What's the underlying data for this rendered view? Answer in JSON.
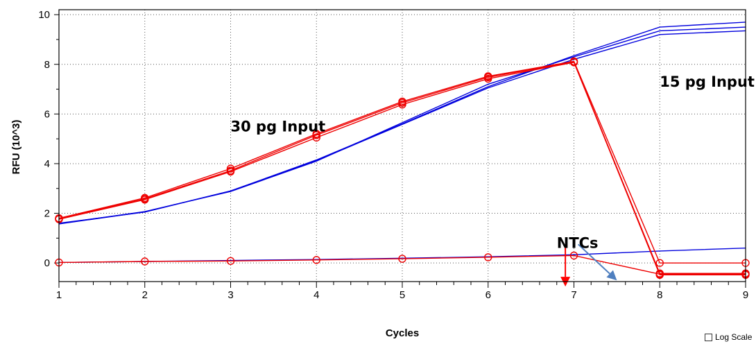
{
  "chart_data": {
    "type": "line",
    "xlabel": "Cycles",
    "ylabel": "RFU (10^3)",
    "xlim": [
      1,
      9
    ],
    "ylim": [
      -0.75,
      10.2
    ],
    "x_ticks": [
      1,
      2,
      3,
      4,
      5,
      6,
      7,
      8,
      9
    ],
    "y_ticks": [
      0,
      2,
      4,
      6,
      8,
      10
    ],
    "grid": true,
    "x": [
      1,
      2,
      3,
      4,
      5,
      6,
      7,
      8,
      9
    ],
    "series": [
      {
        "color": "#0000dd",
        "markers": false,
        "values": [
          1.6,
          2.05,
          2.9,
          4.15,
          5.6,
          7.1,
          8.35,
          9.5,
          9.7
        ]
      },
      {
        "color": "#0000dd",
        "markers": false,
        "values": [
          1.58,
          2.07,
          2.88,
          4.1,
          5.65,
          7.2,
          8.3,
          9.35,
          9.5
        ]
      },
      {
        "color": "#0000dd",
        "markers": false,
        "values": [
          1.57,
          2.06,
          2.9,
          4.12,
          5.58,
          7.05,
          8.2,
          9.2,
          9.35
        ]
      },
      {
        "color": "#0000dd",
        "markers": false,
        "values": [
          0.02,
          0.06,
          0.1,
          0.14,
          0.19,
          0.25,
          0.33,
          0.48,
          0.6
        ]
      },
      {
        "color": "#ee0000",
        "markers": true,
        "values": [
          1.8,
          2.62,
          3.8,
          5.2,
          6.5,
          7.52,
          8.12,
          0.0,
          0.0
        ]
      },
      {
        "color": "#ee0000",
        "markers": true,
        "values": [
          1.78,
          2.58,
          3.72,
          5.15,
          6.45,
          7.48,
          8.1,
          -0.42,
          -0.42
        ]
      },
      {
        "color": "#ee0000",
        "markers": true,
        "values": [
          1.76,
          2.55,
          3.68,
          5.05,
          6.38,
          7.42,
          8.08,
          -0.48,
          -0.48
        ]
      },
      {
        "color": "#ee0000",
        "markers": true,
        "values": [
          0.02,
          0.06,
          0.08,
          0.12,
          0.17,
          0.23,
          0.3,
          -0.45,
          -0.45
        ]
      }
    ],
    "annotations": [
      {
        "text": "30 pg Input",
        "x": 3.0,
        "y": 5.3
      },
      {
        "text": "15 pg Input",
        "x": 8.0,
        "y": 7.1
      },
      {
        "text": "NTCs",
        "x": 6.8,
        "y": 0.6
      }
    ],
    "arrows": [
      {
        "color": "#ff0000",
        "x1": 6.9,
        "y1": 0.7,
        "x2": 6.9,
        "y2": -0.95
      },
      {
        "color": "#4f7fbf",
        "x1": 7.05,
        "y1": 0.75,
        "x2": 7.5,
        "y2": -0.7
      }
    ]
  },
  "log_scale": {
    "label": "Log Scale",
    "checked": false
  }
}
